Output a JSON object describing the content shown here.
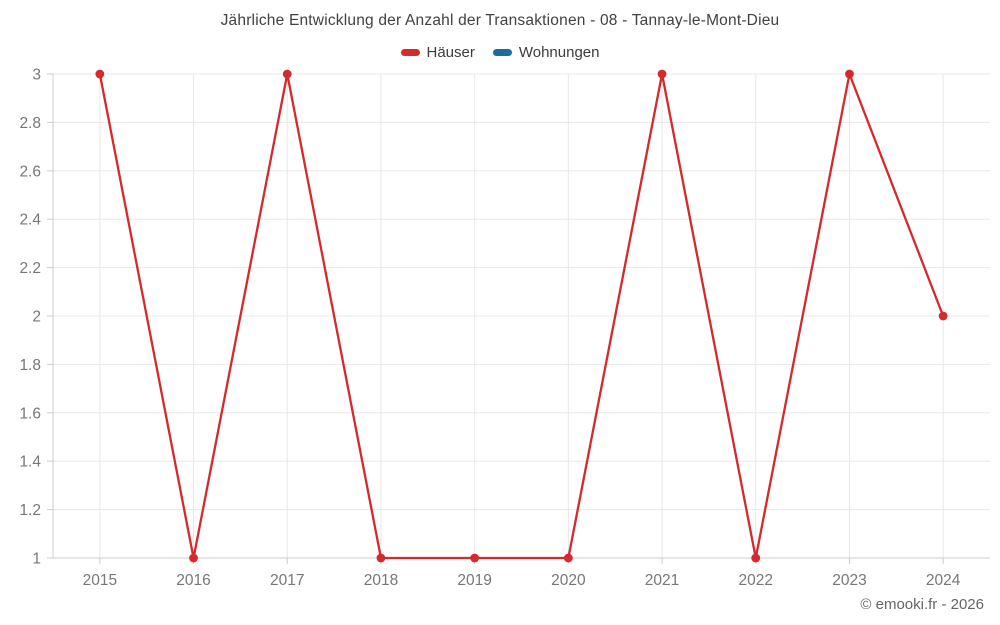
{
  "chart_data": {
    "type": "line",
    "title": "Jährliche Entwicklung der Anzahl der Transaktionen - 08 - Tannay-le-Mont-Dieu",
    "categories": [
      "2015",
      "2016",
      "2017",
      "2018",
      "2019",
      "2020",
      "2021",
      "2022",
      "2023",
      "2024"
    ],
    "series": [
      {
        "name": "Häuser",
        "color": "#d42a2e",
        "values": [
          3,
          1,
          3,
          1,
          1,
          1,
          3,
          1,
          3,
          2
        ]
      },
      {
        "name": "Wohnungen",
        "color": "#1b6d9c",
        "values": []
      }
    ],
    "ylim": [
      1,
      3
    ],
    "yticks": [
      "1",
      "1.2",
      "1.4",
      "1.6",
      "1.8",
      "2",
      "2.2",
      "2.4",
      "2.6",
      "2.8",
      "3"
    ],
    "grid": true,
    "legend_position": "top",
    "xlabel": "",
    "ylabel": ""
  },
  "legend": {
    "items": [
      {
        "label": "Häuser",
        "color": "#d42a2e"
      },
      {
        "label": "Wohnungen",
        "color": "#1b6d9c"
      }
    ]
  },
  "colors": {
    "grid_line": "#e8e8e8",
    "axis_line": "#cccccc",
    "tick_label": "#777777",
    "title_text": "#414141",
    "footer_text": "#666666"
  },
  "footer": {
    "copyright": "© emooki.fr - 2026"
  }
}
